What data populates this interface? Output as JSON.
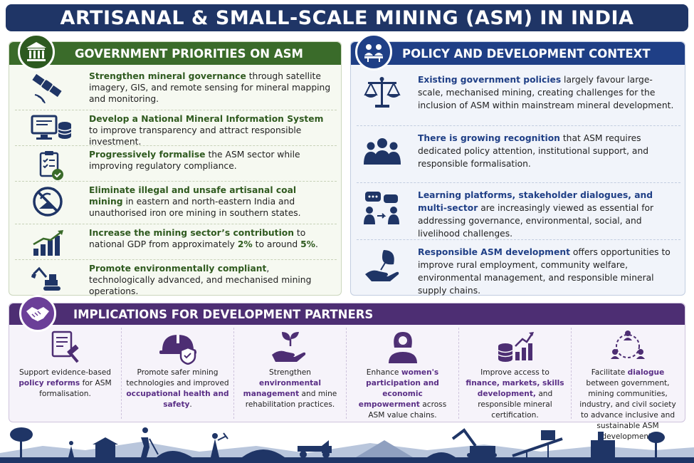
{
  "title": "ARTISANAL & SMALL-SCALE MINING (ASM) IN INDIA",
  "government": {
    "header": "GOVERNMENT PRIORITIES ON ASM",
    "header_icon": "government-building-icon",
    "items": [
      {
        "icon": "satellite-icon",
        "bold": "Strengthen mineral governance",
        "rest": " through satellite imagery, GIS, and remote sensing for mineral mapping and monitoring."
      },
      {
        "icon": "computer-database-icon",
        "bold": "Develop a National Mineral Information System",
        "rest": " to improve transparency and attract responsible investment."
      },
      {
        "icon": "clipboard-check-icon",
        "bold": "Progressively formalise",
        "rest": " the ASM sector while improving regulatory compliance."
      },
      {
        "icon": "no-mining-icon",
        "bold": "Eliminate illegal and unsafe artisanal coal mining",
        "rest": " in eastern and north-eastern India and unauthorised iron ore mining in southern states."
      },
      {
        "icon": "growth-chart-icon",
        "bold": "Increase the mining sector’s contribution",
        "rest": " to national GDP from approximately ",
        "bold2": "2%",
        "rest2": " to around ",
        "bold3": "5%",
        "rest3": "."
      },
      {
        "icon": "excavator-icon",
        "bold": "Promote environmentally compliant",
        "rest": ", technologically advanced, and mechanised mining operations."
      }
    ]
  },
  "policy": {
    "header": "POLICY AND DEVELOPMENT CONTEXT",
    "header_icon": "meeting-icon",
    "items": [
      {
        "icon": "scales-icon",
        "bold": "Existing government policies",
        "rest": " largely favour large-scale, mechanised mining, creating challenges for the inclusion of ASM within mainstream mineral development."
      },
      {
        "icon": "people-group-icon",
        "bold": "There is growing recognition",
        "rest": " that ASM requires dedicated policy attention, institutional support, and responsible formalisation."
      },
      {
        "icon": "dialogue-icon",
        "bold": "Learning platforms, stakeholder dialogues, and multi-sector",
        "rest": " are increasingly viewed as essential for addressing governance, environmental, social, and livelihood challenges."
      },
      {
        "icon": "hand-leaf-icon",
        "bold": "Responsible ASM development",
        "rest": " offers opportunities to improve rural employment, community welfare, environmental management, and responsible mineral supply chains."
      }
    ]
  },
  "implications": {
    "header": "IMPLICATIONS FOR DEVELOPMENT PARTNERS",
    "header_icon": "handshake-icon",
    "items": [
      {
        "icon": "document-gavel-icon",
        "pre": "Support evidence-based ",
        "bold": "policy reforms",
        "post": " for ASM formalisation."
      },
      {
        "icon": "hard-hat-shield-icon",
        "pre": "Promote safer mining technologies and improved ",
        "bold": "occupational health and safety",
        "post": "."
      },
      {
        "icon": "hand-plant-icon",
        "pre": "Strengthen ",
        "bold": "environmental management",
        "post": " and mine rehabilitation practices."
      },
      {
        "icon": "woman-icon",
        "pre": "Enhance ",
        "bold": "women's participation and economic empowerment",
        "post": " across ASM value chains."
      },
      {
        "icon": "coins-chart-icon",
        "pre": "Improve access to ",
        "bold": "finance, markets, skills development,",
        "post": " and responsible mineral certification."
      },
      {
        "icon": "network-people-icon",
        "pre": "Facilitate ",
        "bold": "dialogue",
        "post": " between government, mining communities, industry, and civil society to advance inclusive and sustainable ASM development."
      }
    ]
  },
  "colors": {
    "navy": "#1f3566",
    "green": "#3a6b2a",
    "blue": "#1f3f86",
    "purple": "#4d2e73",
    "footer": "#1f3566"
  }
}
